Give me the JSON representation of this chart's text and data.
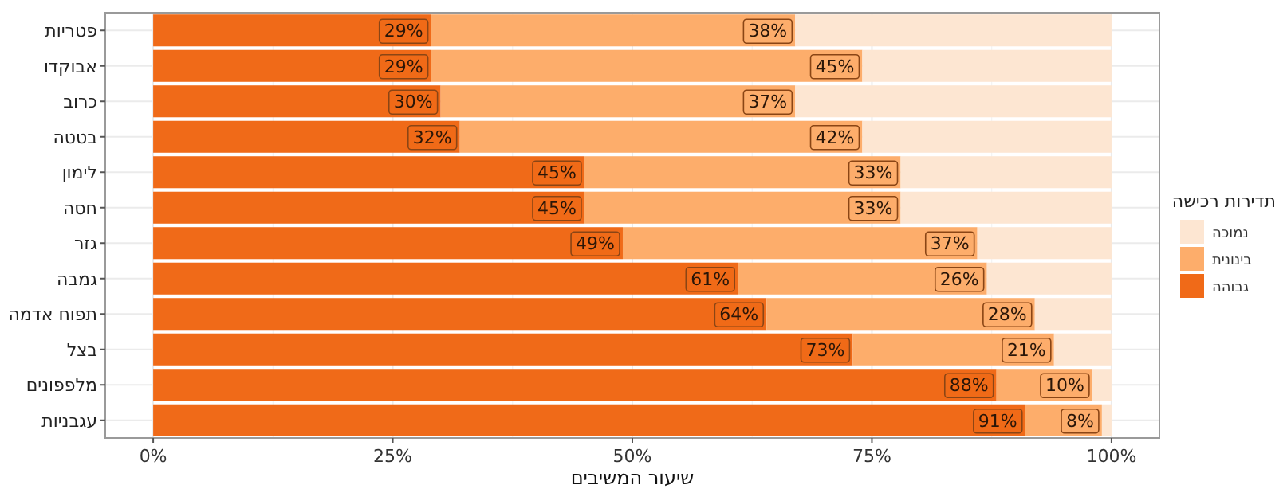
{
  "chart_data": {
    "type": "bar",
    "orientation": "horizontal",
    "stacked": true,
    "categories": [
      "פטריות",
      "אבוקדו",
      "כרוב",
      "בטטה",
      "לימון",
      "חסה",
      "גזר",
      "גמבה",
      "תפוח אדמה",
      "בצל",
      "מלפפונים",
      "עגבניות"
    ],
    "series": [
      {
        "name": "גבוהה",
        "color": "#f06a18",
        "values": [
          29,
          29,
          30,
          32,
          45,
          45,
          49,
          61,
          64,
          73,
          88,
          91
        ],
        "value_labels": [
          "29%",
          "29%",
          "30%",
          "32%",
          "45%",
          "45%",
          "49%",
          "61%",
          "64%",
          "73%",
          "88%",
          "91%"
        ]
      },
      {
        "name": "בינונית",
        "color": "#fdad6b",
        "values": [
          38,
          45,
          37,
          42,
          33,
          33,
          37,
          26,
          28,
          21,
          10,
          8
        ],
        "value_labels": [
          "38%",
          "45%",
          "37%",
          "42%",
          "33%",
          "33%",
          "37%",
          "26%",
          "28%",
          "21%",
          "10%",
          "8%"
        ]
      },
      {
        "name": "נמוכה",
        "color": "#fde6d2",
        "values": [
          33,
          26,
          33,
          26,
          22,
          22,
          14,
          13,
          8,
          6,
          2,
          1
        ]
      }
    ],
    "xlabel": "שיעור המשיבים",
    "legend_title": "תדירות רכישה",
    "legend": "right",
    "grid": true,
    "xlim": [
      -5,
      105
    ],
    "xticks": [
      {
        "value": 0,
        "label": "0%"
      },
      {
        "value": 25,
        "label": "25%"
      },
      {
        "value": 50,
        "label": "50%"
      },
      {
        "value": 75,
        "label": "75%"
      },
      {
        "value": 100,
        "label": "100%"
      }
    ]
  }
}
